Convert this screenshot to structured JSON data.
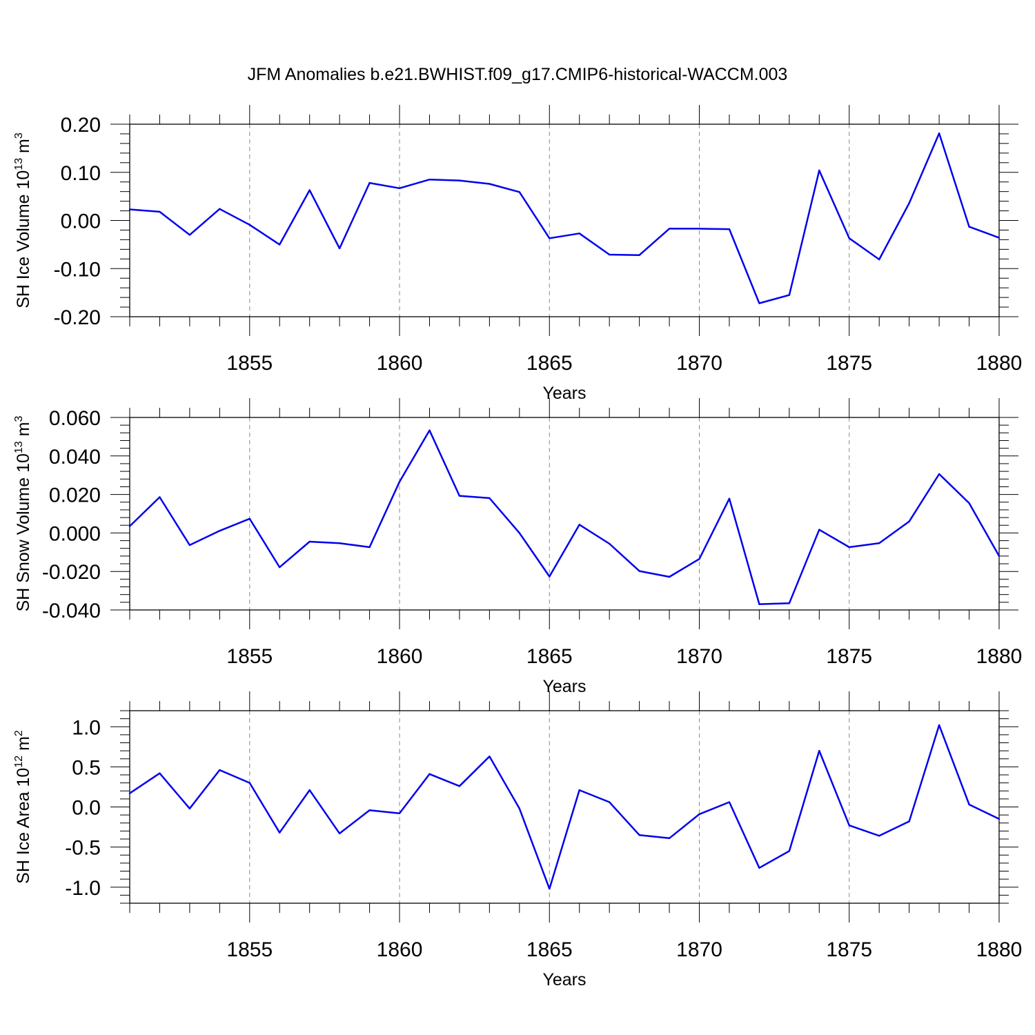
{
  "title": "JFM Anomalies b.e21.BWHIST.f09_g17.CMIP6-historical-WACCM.003",
  "line_color": "#0000ee",
  "chart_data": [
    {
      "type": "line",
      "ylabel": "SH Ice Volume 10",
      "ylabel_exp": "13",
      "ylabel_unit": " m",
      "ylabel_unit_exp": "3",
      "xlabel": "Years",
      "xlim": [
        1851,
        1880
      ],
      "ylim": [
        -0.2,
        0.2
      ],
      "x_ticks": [
        "1855",
        "1860",
        "1865",
        "1870",
        "1875",
        "1880"
      ],
      "y_ticks": [
        "0.20",
        "0.10",
        "0.00",
        "-0.10",
        "-0.20"
      ],
      "y_tick_values": [
        0.2,
        0.1,
        0.0,
        -0.1,
        -0.2
      ],
      "x": [
        1851,
        1852,
        1853,
        1854,
        1855,
        1856,
        1857,
        1858,
        1859,
        1860,
        1861,
        1862,
        1863,
        1864,
        1865,
        1866,
        1867,
        1868,
        1869,
        1870,
        1871,
        1872,
        1873,
        1874,
        1875,
        1876,
        1877,
        1878,
        1879,
        1880
      ],
      "values": [
        0.023,
        0.018,
        -0.03,
        0.024,
        -0.009,
        -0.05,
        0.063,
        -0.058,
        0.078,
        0.067,
        0.085,
        0.083,
        0.076,
        0.059,
        -0.037,
        -0.027,
        -0.071,
        -0.072,
        -0.017,
        -0.017,
        -0.018,
        -0.172,
        -0.155,
        0.104,
        -0.037,
        -0.081,
        0.036,
        0.181,
        -0.013,
        -0.036
      ]
    },
    {
      "type": "line",
      "ylabel": "SH Snow Volume 10",
      "ylabel_exp": "13",
      "ylabel_unit": " m",
      "ylabel_unit_exp": "3",
      "xlabel": "Years",
      "xlim": [
        1851,
        1880
      ],
      "ylim": [
        -0.04,
        0.06
      ],
      "x_ticks": [
        "1855",
        "1860",
        "1865",
        "1870",
        "1875",
        "1880"
      ],
      "y_ticks": [
        "0.060",
        "0.040",
        "0.020",
        "0.000",
        "-0.020",
        "-0.040"
      ],
      "y_tick_values": [
        0.06,
        0.04,
        0.02,
        0.0,
        -0.02,
        -0.04
      ],
      "x": [
        1851,
        1852,
        1853,
        1854,
        1855,
        1856,
        1857,
        1858,
        1859,
        1860,
        1861,
        1862,
        1863,
        1864,
        1865,
        1866,
        1867,
        1868,
        1869,
        1870,
        1871,
        1872,
        1873,
        1874,
        1875,
        1876,
        1877,
        1878,
        1879,
        1880
      ],
      "values": [
        0.0035,
        0.0186,
        -0.0063,
        0.0011,
        0.0074,
        -0.0178,
        -0.0045,
        -0.0053,
        -0.0074,
        0.0266,
        0.0533,
        0.0193,
        0.0181,
        0.0,
        -0.0226,
        0.0043,
        -0.0056,
        -0.0198,
        -0.0228,
        -0.0135,
        0.0178,
        -0.037,
        -0.0365,
        0.0017,
        -0.0074,
        -0.0053,
        0.006,
        0.0306,
        0.0155,
        -0.012
      ]
    },
    {
      "type": "line",
      "ylabel": "SH Ice Area 10",
      "ylabel_exp": "12",
      "ylabel_unit": " m",
      "ylabel_unit_exp": "2",
      "xlabel": "Years",
      "xlim": [
        1851,
        1880
      ],
      "ylim": [
        -1.2,
        1.2
      ],
      "x_ticks": [
        "1855",
        "1860",
        "1865",
        "1870",
        "1875",
        "1880"
      ],
      "y_ticks": [
        "1.0",
        "0.5",
        "0.0",
        "-0.5",
        "-1.0"
      ],
      "y_tick_values": [
        1.0,
        0.5,
        0.0,
        -0.5,
        -1.0
      ],
      "x": [
        1851,
        1852,
        1853,
        1854,
        1855,
        1856,
        1857,
        1858,
        1859,
        1860,
        1861,
        1862,
        1863,
        1864,
        1865,
        1866,
        1867,
        1868,
        1869,
        1870,
        1871,
        1872,
        1873,
        1874,
        1875,
        1876,
        1877,
        1878,
        1879,
        1880
      ],
      "values": [
        0.17,
        0.42,
        -0.02,
        0.46,
        0.3,
        -0.32,
        0.21,
        -0.33,
        -0.04,
        -0.08,
        0.41,
        0.26,
        0.63,
        -0.02,
        -1.02,
        0.21,
        0.06,
        -0.35,
        -0.39,
        -0.09,
        0.06,
        -0.76,
        -0.55,
        0.7,
        -0.23,
        -0.36,
        -0.18,
        1.02,
        0.03,
        -0.15
      ]
    }
  ]
}
